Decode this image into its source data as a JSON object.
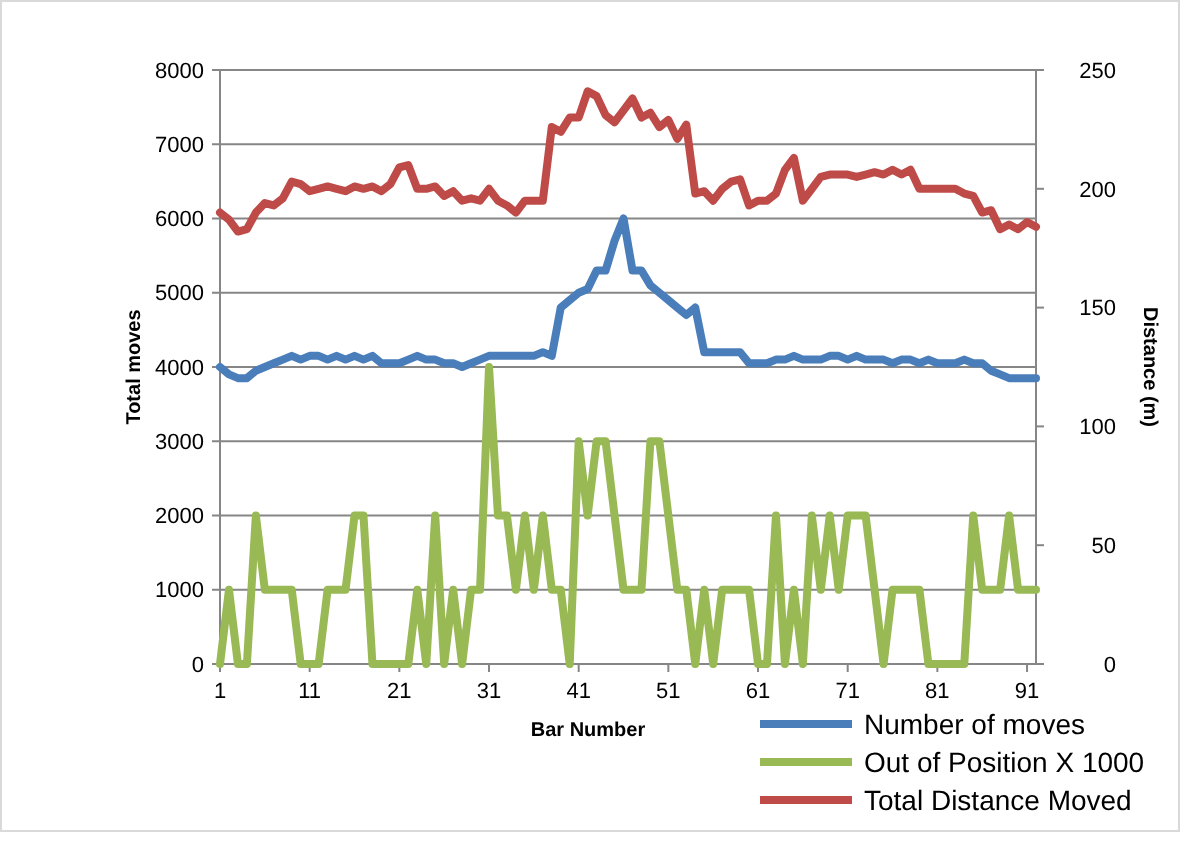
{
  "chart_data": {
    "type": "line",
    "xlabel": "Bar Number",
    "ylabel": "Total moves",
    "y2label": "Distance (m)",
    "x": [
      1,
      2,
      3,
      4,
      5,
      6,
      7,
      8,
      9,
      10,
      11,
      12,
      13,
      14,
      15,
      16,
      17,
      18,
      19,
      20,
      21,
      22,
      23,
      24,
      25,
      26,
      27,
      28,
      29,
      30,
      31,
      32,
      33,
      34,
      35,
      36,
      37,
      38,
      39,
      40,
      41,
      42,
      43,
      44,
      45,
      46,
      47,
      48,
      49,
      50,
      51,
      52,
      53,
      54,
      55,
      56,
      57,
      58,
      59,
      60,
      61,
      62,
      63,
      64,
      65,
      66,
      67,
      68,
      69,
      70,
      71,
      72,
      73,
      74,
      75,
      76,
      77,
      78,
      79,
      80,
      81,
      82,
      83,
      84,
      85,
      86,
      87,
      88,
      89,
      90,
      91,
      92
    ],
    "xlim": [
      1,
      92
    ],
    "xticks": [
      1,
      11,
      21,
      31,
      41,
      51,
      61,
      71,
      81,
      91
    ],
    "ylim": [
      0,
      8000
    ],
    "yticks": [
      0,
      1000,
      2000,
      3000,
      4000,
      5000,
      6000,
      7000,
      8000
    ],
    "y2lim": [
      0,
      250
    ],
    "y2ticks": [
      0,
      50,
      100,
      150,
      200,
      250
    ],
    "grid": "y",
    "legend": "bottom right",
    "marker": "none",
    "line_style": "solid",
    "series": [
      {
        "name": "Number of moves",
        "color": "#4a7ebb",
        "values": [
          4000,
          3900,
          3850,
          3850,
          3950,
          4000,
          4050,
          4100,
          4150,
          4100,
          4150,
          4150,
          4100,
          4150,
          4100,
          4150,
          4100,
          4150,
          4050,
          4050,
          4050,
          4100,
          4150,
          4100,
          4100,
          4050,
          4050,
          4000,
          4050,
          4100,
          4150,
          4150,
          4150,
          4150,
          4150,
          4150,
          4200,
          4150,
          4800,
          4900,
          5000,
          5050,
          5300,
          5300,
          5700,
          6000,
          5300,
          5300,
          5100,
          5000,
          4900,
          4800,
          4700,
          4800,
          4200,
          4200,
          4200,
          4200,
          4200,
          4050,
          4050,
          4050,
          4100,
          4100,
          4150,
          4100,
          4100,
          4100,
          4150,
          4150,
          4100,
          4150,
          4100,
          4100,
          4100,
          4050,
          4100,
          4100,
          4050,
          4100,
          4050,
          4050,
          4050,
          4100,
          4050,
          4050,
          3950,
          3900,
          3850,
          3850,
          3850,
          3850
        ]
      },
      {
        "name": "Out of Position X 1000",
        "color": "#98b954",
        "values": [
          0,
          1000,
          0,
          0,
          2000,
          1000,
          1000,
          1000,
          1000,
          0,
          0,
          0,
          1000,
          1000,
          1000,
          2000,
          2000,
          0,
          0,
          0,
          0,
          0,
          1000,
          0,
          2000,
          0,
          1000,
          0,
          1000,
          1000,
          4000,
          2000,
          2000,
          1000,
          2000,
          1000,
          2000,
          1000,
          1000,
          0,
          3000,
          2000,
          3000,
          3000,
          2000,
          1000,
          1000,
          1000,
          3000,
          3000,
          2000,
          1000,
          1000,
          0,
          1000,
          0,
          1000,
          1000,
          1000,
          1000,
          0,
          0,
          2000,
          0,
          1000,
          0,
          2000,
          1000,
          2000,
          1000,
          2000,
          2000,
          2000,
          1000,
          0,
          1000,
          1000,
          1000,
          1000,
          0,
          0,
          0,
          0,
          0,
          2000,
          1000,
          1000,
          1000,
          2000,
          1000,
          1000,
          1000
        ]
      },
      {
        "name": "Total Distance Moved",
        "color": "#be4b48",
        "axis": "y2",
        "values": [
          190,
          187,
          182,
          183,
          190,
          194,
          193,
          196,
          203,
          202,
          199,
          200,
          201,
          200,
          199,
          201,
          200,
          201,
          199,
          202,
          209,
          210,
          200,
          200,
          201,
          197,
          199,
          195,
          196,
          195,
          200,
          195,
          193,
          190,
          195,
          195,
          195,
          226,
          224,
          230,
          230,
          241,
          239,
          231,
          228,
          233,
          238,
          230,
          232,
          226,
          229,
          221,
          227,
          198,
          199,
          195,
          200,
          203,
          204,
          193,
          195,
          195,
          198,
          208,
          213,
          195,
          200,
          205,
          206,
          206,
          206,
          205,
          206,
          207,
          206,
          208,
          206,
          208,
          200,
          200,
          200,
          200,
          200,
          198,
          197,
          190,
          191,
          183,
          185,
          183,
          186,
          184
        ]
      }
    ]
  }
}
